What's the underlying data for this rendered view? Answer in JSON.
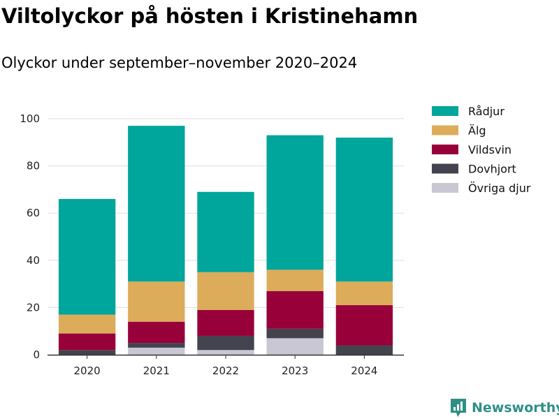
{
  "header": {
    "title": "Viltolyckor på hösten i Kristinehamn",
    "subtitle": "Olyckor under september–november 2020–2024"
  },
  "brand": {
    "name": "Newsworthy",
    "color": "#2f8f86",
    "icon": "newsworthy-logo-icon"
  },
  "chart_data": {
    "type": "bar",
    "stacked": true,
    "title": "Viltolyckor på hösten i Kristinehamn",
    "subtitle": "Olyckor under september–november 2020–2024",
    "xlabel": "",
    "ylabel": "",
    "categories": [
      "2020",
      "2021",
      "2022",
      "2023",
      "2024"
    ],
    "ylim": [
      0,
      100
    ],
    "yticks": [
      0,
      20,
      40,
      60,
      80,
      100
    ],
    "grid": true,
    "legend_position": "right",
    "series": [
      {
        "name": "Övriga djur",
        "color": "#c9c7d3",
        "values": [
          0,
          3,
          2,
          7,
          0
        ]
      },
      {
        "name": "Dovhjort",
        "color": "#43434f",
        "values": [
          2,
          2,
          6,
          4,
          4
        ]
      },
      {
        "name": "Vildsvin",
        "color": "#98003a",
        "values": [
          7,
          9,
          11,
          16,
          17
        ]
      },
      {
        "name": "Älg",
        "color": "#dcac5a",
        "values": [
          8,
          17,
          16,
          9,
          10
        ]
      },
      {
        "name": "Rådjur",
        "color": "#00a59b",
        "values": [
          49,
          66,
          34,
          57,
          61
        ]
      }
    ],
    "legend_order": [
      "Rådjur",
      "Älg",
      "Vildsvin",
      "Dovhjort",
      "Övriga djur"
    ]
  }
}
